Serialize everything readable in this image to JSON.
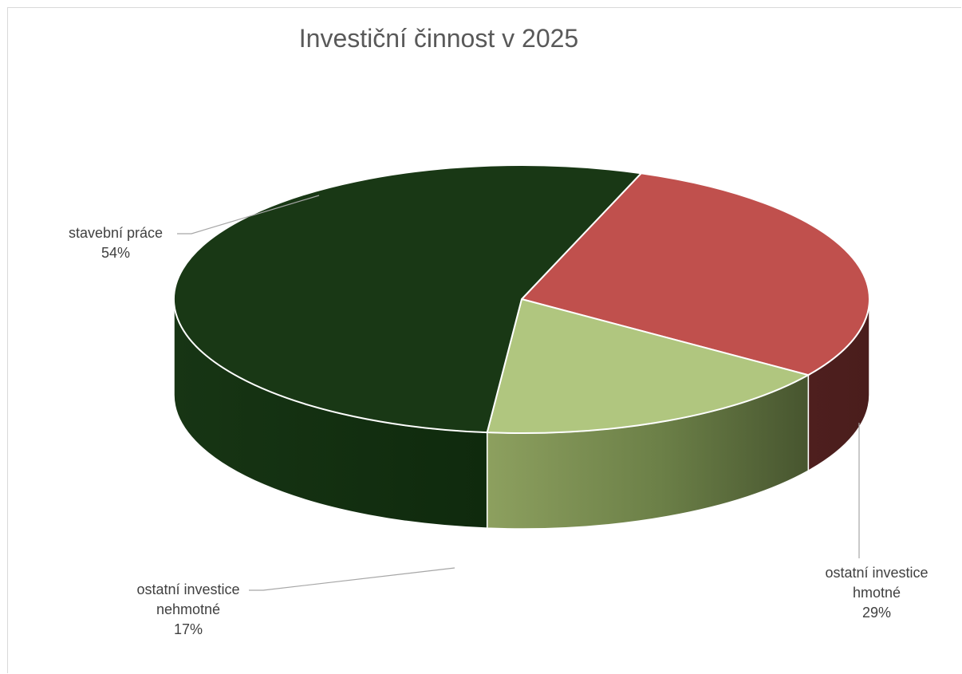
{
  "chart_data": {
    "type": "pie",
    "title": "Investiční činnost v 2025",
    "categories": [
      "stavební práce",
      "ostatní investice hmotné",
      "ostatní investice nehmotné"
    ],
    "values": [
      54,
      29,
      17
    ],
    "value_labels": [
      "54%",
      "29%",
      "17%"
    ],
    "label_lines": [
      [
        "stavební práce",
        "54%"
      ],
      [
        "ostatní investice",
        "hmotné",
        "29%"
      ],
      [
        "ostatní investice",
        "nehmotné",
        "17%"
      ]
    ],
    "colors": [
      "#193815",
      "#c0504d",
      "#b0c67f"
    ],
    "side_colors": [
      "#102a0f",
      "#4a1e1d",
      "#7a8f52"
    ],
    "legend": "none",
    "style": "3d-pie"
  }
}
